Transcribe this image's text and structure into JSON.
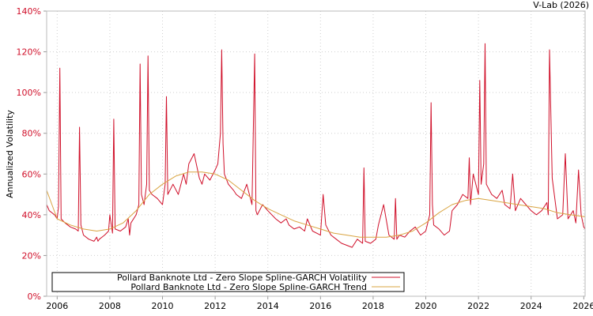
{
  "chart_data": {
    "type": "line",
    "credit": "V-Lab (2026)",
    "title": "",
    "xlabel": "",
    "ylabel": "Annualized Volatility",
    "xlim": [
      2005.6,
      2026.05
    ],
    "ylim": [
      0,
      140
    ],
    "grid": true,
    "legend_position": "bottom-left",
    "y_ticks": [
      {
        "value": 0,
        "label": "0%"
      },
      {
        "value": 20,
        "label": "20%"
      },
      {
        "value": 40,
        "label": "40%"
      },
      {
        "value": 60,
        "label": "60%"
      },
      {
        "value": 80,
        "label": "80%"
      },
      {
        "value": 100,
        "label": "100%"
      },
      {
        "value": 120,
        "label": "120%"
      },
      {
        "value": 140,
        "label": "140%"
      }
    ],
    "x_ticks": [
      {
        "value": 2006,
        "label": "2006"
      },
      {
        "value": 2008,
        "label": "2008"
      },
      {
        "value": 2010,
        "label": "2010"
      },
      {
        "value": 2012,
        "label": "2012"
      },
      {
        "value": 2014,
        "label": "2014"
      },
      {
        "value": 2016,
        "label": "2016"
      },
      {
        "value": 2018,
        "label": "2018"
      },
      {
        "value": 2020,
        "label": "2020"
      },
      {
        "value": 2022,
        "label": "2022"
      },
      {
        "value": 2024,
        "label": "2024"
      },
      {
        "value": 2026,
        "label": "2026"
      }
    ],
    "series": [
      {
        "name": "Pollard Banknote Ltd - Zero Slope Spline-GARCH Volatility",
        "color": "#d0102a",
        "x": [
          2005.6,
          2005.7,
          2005.9,
          2006.0,
          2006.05,
          2006.1,
          2006.15,
          2006.3,
          2006.5,
          2006.7,
          2006.8,
          2006.85,
          2006.9,
          2007.0,
          2007.2,
          2007.4,
          2007.5,
          2007.55,
          2007.6,
          2007.8,
          2007.95,
          2008.0,
          2008.1,
          2008.15,
          2008.2,
          2008.4,
          2008.6,
          2008.7,
          2008.75,
          2008.8,
          2009.0,
          2009.1,
          2009.15,
          2009.2,
          2009.3,
          2009.4,
          2009.45,
          2009.5,
          2009.6,
          2009.8,
          2010.0,
          2010.1,
          2010.15,
          2010.2,
          2010.4,
          2010.6,
          2010.8,
          2010.9,
          2011.0,
          2011.2,
          2011.4,
          2011.5,
          2011.6,
          2011.8,
          2012.0,
          2012.1,
          2012.2,
          2012.25,
          2012.3,
          2012.35,
          2012.5,
          2012.7,
          2012.8,
          2013.0,
          2013.2,
          2013.4,
          2013.5,
          2013.55,
          2013.6,
          2013.8,
          2014.0,
          2014.3,
          2014.5,
          2014.7,
          2014.8,
          2015.0,
          2015.2,
          2015.4,
          2015.5,
          2015.7,
          2016.0,
          2016.1,
          2016.2,
          2016.4,
          2016.6,
          2016.8,
          2017.0,
          2017.2,
          2017.4,
          2017.6,
          2017.65,
          2017.7,
          2017.9,
          2018.1,
          2018.2,
          2018.4,
          2018.6,
          2018.8,
          2018.85,
          2018.9,
          2019.0,
          2019.2,
          2019.4,
          2019.6,
          2019.8,
          2020.0,
          2020.15,
          2020.2,
          2020.25,
          2020.3,
          2020.5,
          2020.7,
          2020.9,
          2021.0,
          2021.2,
          2021.4,
          2021.6,
          2021.65,
          2021.7,
          2021.8,
          2022.0,
          2022.05,
          2022.1,
          2022.2,
          2022.25,
          2022.3,
          2022.5,
          2022.7,
          2022.9,
          2023.0,
          2023.2,
          2023.3,
          2023.4,
          2023.6,
          2023.8,
          2024.0,
          2024.2,
          2024.4,
          2024.6,
          2024.65,
          2024.7,
          2024.8,
          2025.0,
          2025.2,
          2025.3,
          2025.4,
          2025.6,
          2025.7,
          2025.8,
          2025.9,
          2026.0,
          2026.05
        ],
        "values": [
          45,
          42,
          40,
          38,
          44,
          112,
          38,
          36,
          34,
          33,
          32,
          83,
          35,
          30,
          28,
          27,
          29,
          27,
          28,
          30,
          32,
          40,
          31,
          87,
          33,
          32,
          34,
          38,
          30,
          36,
          40,
          45,
          114,
          50,
          45,
          55,
          118,
          52,
          50,
          48,
          45,
          55,
          98,
          50,
          55,
          50,
          60,
          55,
          65,
          70,
          58,
          55,
          60,
          57,
          62,
          65,
          80,
          121,
          75,
          60,
          55,
          52,
          50,
          48,
          55,
          45,
          119,
          42,
          40,
          45,
          42,
          38,
          36,
          38,
          35,
          33,
          34,
          32,
          38,
          32,
          30,
          50,
          35,
          30,
          28,
          26,
          25,
          24,
          28,
          26,
          63,
          27,
          26,
          28,
          35,
          45,
          30,
          28,
          48,
          28,
          30,
          29,
          32,
          34,
          30,
          32,
          40,
          95,
          45,
          35,
          33,
          30,
          32,
          42,
          45,
          50,
          48,
          68,
          45,
          60,
          50,
          106,
          55,
          65,
          124,
          55,
          50,
          48,
          52,
          45,
          43,
          60,
          42,
          48,
          45,
          42,
          40,
          42,
          46,
          40,
          121,
          58,
          38,
          40,
          70,
          38,
          42,
          36,
          62,
          40,
          34,
          33
        ],
        "line_width": 1
      },
      {
        "name": "Pollard Banknote Ltd - Zero Slope Spline-GARCH Trend",
        "color": "#d9a441",
        "x": [
          2005.6,
          2005.8,
          2006.0,
          2006.5,
          2007.0,
          2007.5,
          2008.0,
          2008.5,
          2009.0,
          2009.5,
          2010.0,
          2010.5,
          2011.0,
          2011.5,
          2012.0,
          2012.5,
          2013.0,
          2013.5,
          2014.0,
          2014.5,
          2015.0,
          2015.5,
          2016.0,
          2016.5,
          2017.0,
          2017.5,
          2018.0,
          2018.5,
          2019.0,
          2019.5,
          2020.0,
          2020.5,
          2021.0,
          2021.5,
          2022.0,
          2022.5,
          2023.0,
          2023.5,
          2024.0,
          2024.5,
          2025.0,
          2025.5,
          2026.05
        ],
        "values": [
          52,
          45,
          38,
          35,
          33,
          32,
          33,
          36,
          42,
          50,
          55,
          59,
          61,
          61,
          60,
          57,
          52,
          47,
          43,
          40,
          37,
          35,
          33,
          31,
          30,
          29,
          29,
          29,
          30,
          32,
          36,
          41,
          45,
          47,
          48,
          47,
          46,
          45,
          44,
          43,
          41,
          40,
          39
        ],
        "line_width": 1
      }
    ]
  }
}
